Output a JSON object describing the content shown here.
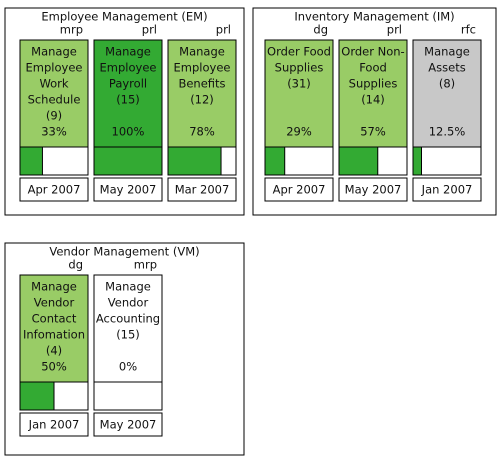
{
  "groups": [
    {
      "title": "Employee Management (EM)",
      "cards": [
        {
          "owner": "mrp",
          "name_lines": [
            "Manage",
            "Employee",
            "Work",
            "Schedule"
          ],
          "count": "(9)",
          "percent": 33,
          "percent_label": "33%",
          "date": "Apr 2007",
          "color": "#99cc66"
        },
        {
          "owner": "prl",
          "name_lines": [
            "Manage",
            "Employee",
            "Payroll"
          ],
          "count": "(15)",
          "percent": 100,
          "percent_label": "100%",
          "date": "May 2007",
          "color": "#33aa33"
        },
        {
          "owner": "prl",
          "name_lines": [
            "Manage",
            "Employee",
            "Benefits"
          ],
          "count": "(12)",
          "percent": 78,
          "percent_label": "78%",
          "date": "Mar 2007",
          "color": "#99cc66"
        }
      ]
    },
    {
      "title": "Inventory Management (IM)",
      "cards": [
        {
          "owner": "dg",
          "name_lines": [
            "Order Food",
            "Supplies"
          ],
          "count": "(31)",
          "percent": 29,
          "percent_label": "29%",
          "date": "Apr 2007",
          "color": "#99cc66"
        },
        {
          "owner": "prl",
          "name_lines": [
            "Order Non-",
            "Food",
            "Supplies"
          ],
          "count": "(14)",
          "percent": 57,
          "percent_label": "57%",
          "date": "May 2007",
          "color": "#99cc66"
        },
        {
          "owner": "rfc",
          "name_lines": [
            "Manage",
            "Assets"
          ],
          "count": "(8)",
          "percent": 12.5,
          "percent_label": "12.5%",
          "date": "Jan 2007",
          "color": "#c8c8c8"
        }
      ]
    },
    {
      "title": "Vendor Management (VM)",
      "cards": [
        {
          "owner": "dg",
          "name_lines": [
            "Manage",
            "Vendor",
            "Contact",
            "Infomation"
          ],
          "count": "(4)",
          "percent": 50,
          "percent_label": "50%",
          "date": "Jan 2007",
          "color": "#99cc66"
        },
        {
          "owner": "mrp",
          "name_lines": [
            "Manage",
            "Vendor",
            "Accounting"
          ],
          "count": "(15)",
          "percent": 0,
          "percent_label": "0%",
          "date": "May 2007",
          "color": "#ffffff"
        }
      ]
    }
  ],
  "bar_color": "#33aa33"
}
